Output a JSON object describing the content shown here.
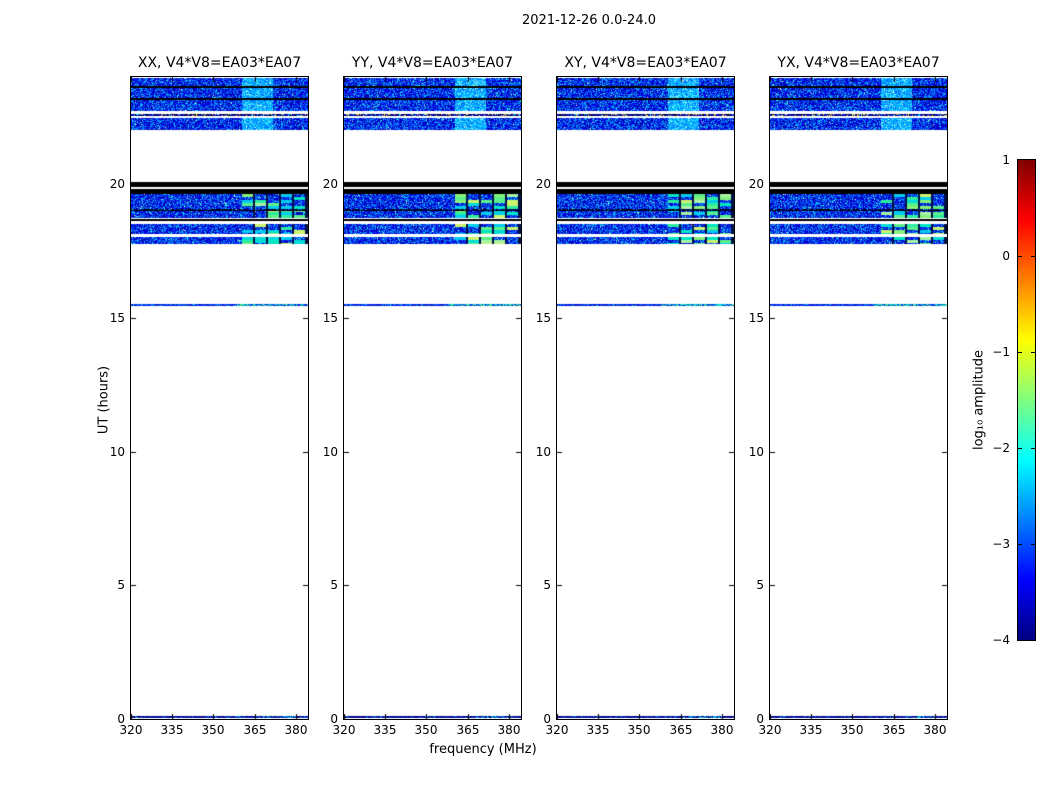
{
  "chart_data": {
    "type": "heatmap",
    "title": "2021-12-26 0.0-24.0",
    "panels": [
      {
        "title": "XX, V4*V8=EA03*EA07",
        "seed": 11
      },
      {
        "title": "YY, V4*V8=EA03*EA07",
        "seed": 29
      },
      {
        "title": "XY, V4*V8=EA03*EA07",
        "seed": 47
      },
      {
        "title": "YX, V4*V8=EA03*EA07",
        "seed": 71
      }
    ],
    "xlabel": "frequency (MHz)",
    "ylabel": "UT (hours)",
    "x_ticks": [
      320,
      335,
      350,
      365,
      380
    ],
    "x_range": [
      320,
      384.4
    ],
    "y_ticks": [
      0,
      5,
      10,
      15,
      20
    ],
    "y_range": [
      0,
      24
    ],
    "grid": false,
    "background": "#ffffff",
    "colorbar": {
      "label": "log₁₀ amplitude",
      "ticks": [
        1,
        0,
        -1,
        -2,
        -3,
        -4
      ],
      "range": [
        -4,
        1
      ],
      "colormap": "jet",
      "gradient": [
        "#7f0000",
        "#ff0000",
        "#ffff00",
        "#00ffff",
        "#0000ff",
        "#00007f"
      ]
    },
    "bands": [
      {
        "type": "noise",
        "from": 22.73,
        "to": 23.97,
        "black_lines": [
          23.68,
          23.2
        ],
        "glow": [
          360.5,
          371.5
        ]
      },
      {
        "type": "speck",
        "from": 22.56,
        "to": 22.63
      },
      {
        "type": "noise",
        "from": 22.02,
        "to": 22.47,
        "glow": [
          360.5,
          371.5
        ]
      },
      {
        "type": "black",
        "from": 19.63,
        "to": 20.07,
        "white_lines": [
          19.88
        ]
      },
      {
        "type": "noise",
        "from": 18.72,
        "to": 19.63,
        "blocks": [
          360.5,
          384.4
        ],
        "dim_lines": [
          19.07
        ]
      },
      {
        "type": "black",
        "from": 18.6,
        "to": 18.7
      },
      {
        "type": "noise",
        "from": 18.13,
        "to": 18.51,
        "blocks": [
          360.5,
          384.4
        ]
      },
      {
        "type": "noise",
        "from": 17.76,
        "to": 18.02,
        "blocks": [
          360.5,
          384.4
        ]
      },
      {
        "type": "trace",
        "from": 15.44,
        "to": 15.52,
        "bright": [
          358,
          384.4
        ]
      },
      {
        "type": "trace2",
        "from": 0.03,
        "to": 0.12,
        "bright": [
          368,
          380
        ]
      }
    ]
  }
}
